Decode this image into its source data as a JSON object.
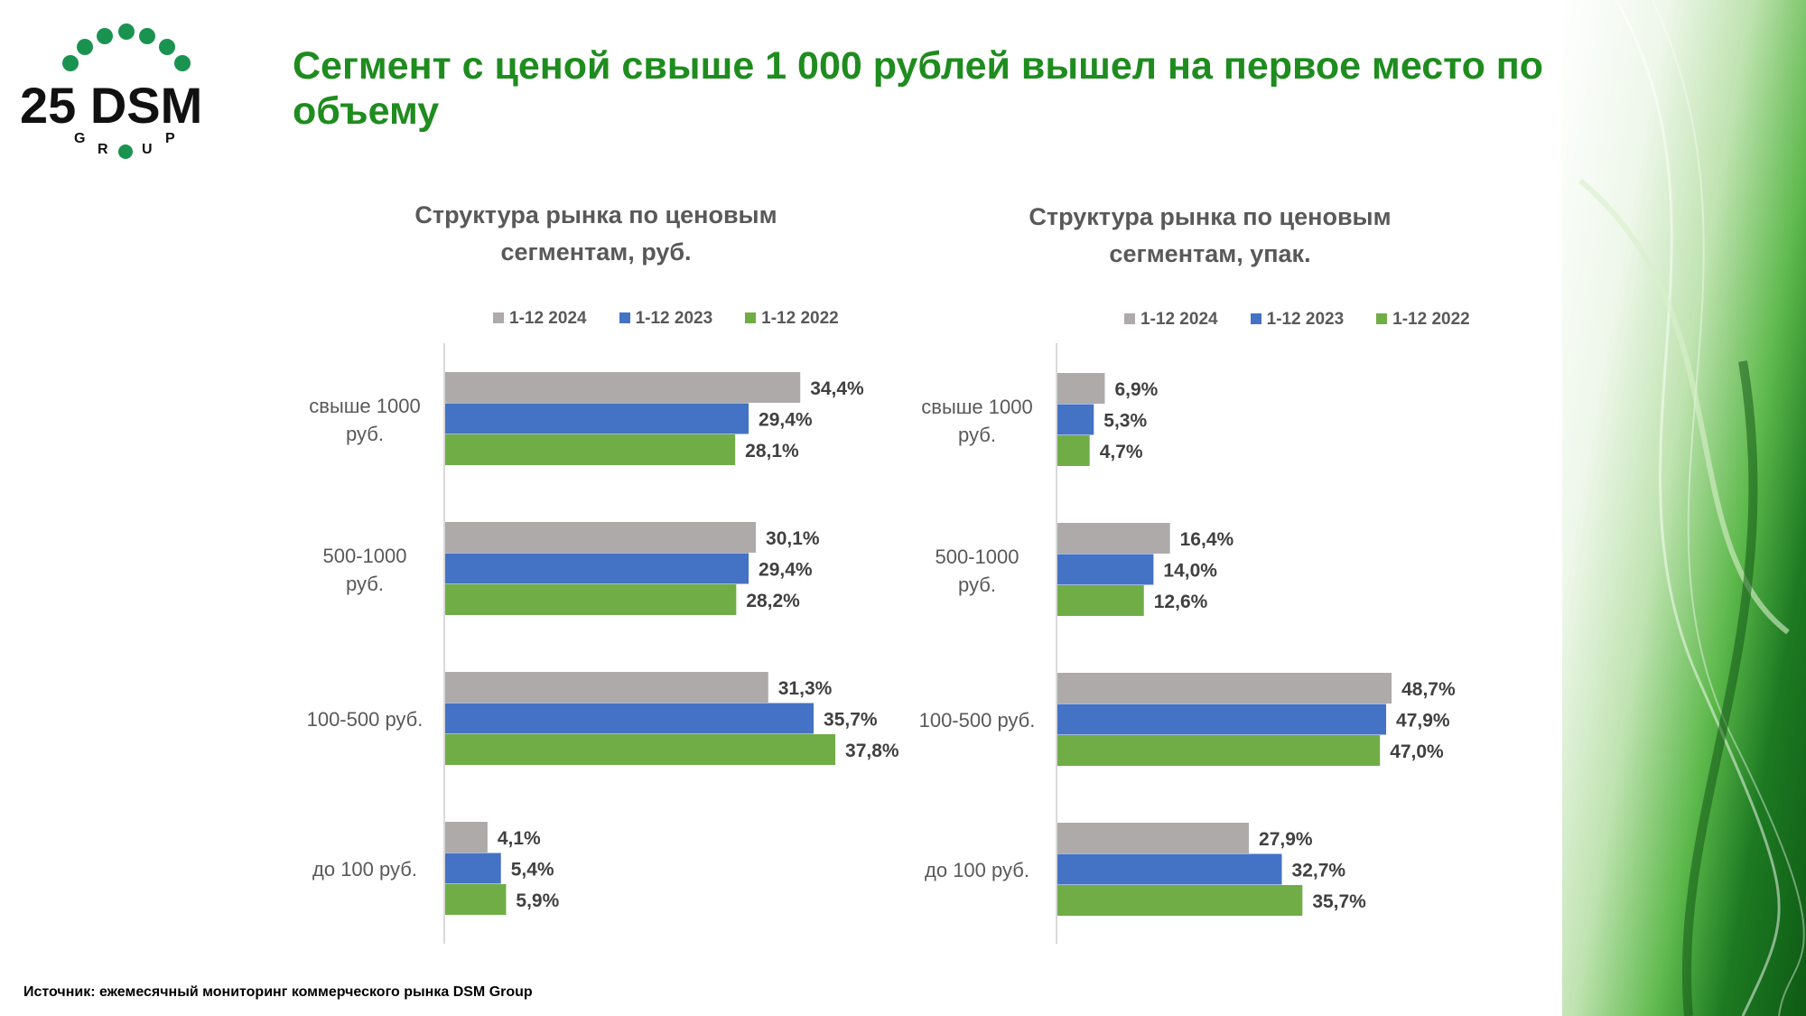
{
  "logo": {
    "text": "25 DSM",
    "sub": "GROUP"
  },
  "title": "Сегмент с ценой свыше 1 000 рублей вышел на первое место по объему",
  "source": "Источник: ежемесячный мониторинг коммерческого рынка DSM Group",
  "colors": {
    "s2024": "#ADAAA9",
    "s2023": "#4472C4",
    "s2022": "#70AD47",
    "title": "#1e8c1e"
  },
  "chart_data": [
    {
      "type": "bar",
      "orientation": "horizontal",
      "title": "Структура рынка по ценовым сегментам, руб.",
      "categories": [
        "свыше 1000 руб.",
        "500-1000 руб.",
        "100-500 руб.",
        "до 100 руб."
      ],
      "series": [
        {
          "name": "1-12 2024",
          "values": [
            34.4,
            30.1,
            31.3,
            4.1
          ],
          "labels": [
            "34,4%",
            "30,1%",
            "31,3%",
            "4,1%"
          ]
        },
        {
          "name": "1-12 2023",
          "values": [
            29.4,
            29.4,
            35.7,
            5.4
          ],
          "labels": [
            "29,4%",
            "29,4%",
            "35,7%",
            "5,4%"
          ]
        },
        {
          "name": "1-12 2022",
          "values": [
            28.1,
            28.2,
            37.8,
            5.9
          ],
          "labels": [
            "28,1%",
            "28,2%",
            "37,8%",
            "5,9%"
          ]
        }
      ],
      "xlim": [
        0,
        40
      ],
      "grid": false,
      "legend": "top"
    },
    {
      "type": "bar",
      "orientation": "horizontal",
      "title": "Структура рынка по ценовым сегментам, упак.",
      "categories": [
        "свыше 1000 руб.",
        "500-1000 руб.",
        "100-500 руб.",
        "до 100 руб."
      ],
      "series": [
        {
          "name": "1-12 2024",
          "values": [
            6.9,
            16.4,
            48.7,
            27.9
          ],
          "labels": [
            "6,9%",
            "16,4%",
            "48,7%",
            "27,9%"
          ]
        },
        {
          "name": "1-12 2023",
          "values": [
            5.3,
            14.0,
            47.9,
            32.7
          ],
          "labels": [
            "5,3%",
            "14,0%",
            "47,9%",
            "32,7%"
          ]
        },
        {
          "name": "1-12 2022",
          "values": [
            4.7,
            12.6,
            47.0,
            35.7
          ],
          "labels": [
            "4,7%",
            "12,6%",
            "47,0%",
            "35,7%"
          ]
        }
      ],
      "xlim": [
        0,
        55
      ],
      "grid": false,
      "legend": "top"
    }
  ]
}
